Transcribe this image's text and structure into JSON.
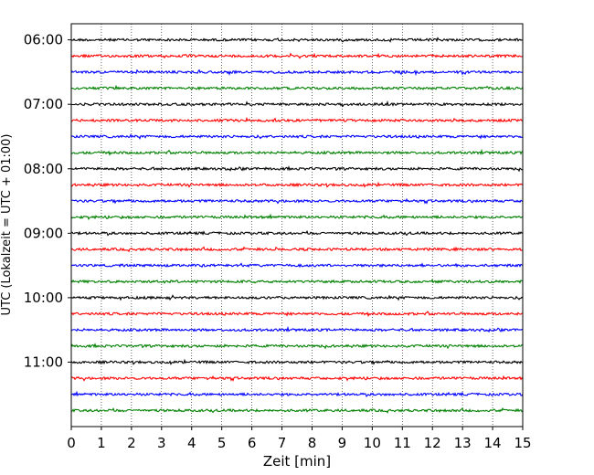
{
  "chart_data": {
    "type": "line",
    "title": "",
    "xlabel": "Zeit  [min]",
    "ylabel": "UTC (Lokalzeit = UTC + 01:00)",
    "xlim": [
      0,
      15
    ],
    "x_ticks": [
      "0",
      "1",
      "2",
      "3",
      "4",
      "5",
      "6",
      "7",
      "8",
      "9",
      "10",
      "11",
      "12",
      "13",
      "14",
      "15"
    ],
    "y_ticks": [
      "06:00",
      "07:00",
      "08:00",
      "09:00",
      "10:00",
      "11:00"
    ],
    "y_range": [
      "05:45",
      "12:00"
    ],
    "trace_interval_min": 15,
    "grid": "vertical dotted lines at each minute",
    "legend": "none",
    "color_cycle": [
      "#000000",
      "#ff0000",
      "#0000ff",
      "#008000"
    ],
    "traces": [
      {
        "start": "06:00",
        "color": "#000000"
      },
      {
        "start": "06:15",
        "color": "#ff0000"
      },
      {
        "start": "06:30",
        "color": "#0000ff"
      },
      {
        "start": "06:45",
        "color": "#008000"
      },
      {
        "start": "07:00",
        "color": "#000000"
      },
      {
        "start": "07:15",
        "color": "#ff0000"
      },
      {
        "start": "07:30",
        "color": "#0000ff"
      },
      {
        "start": "07:45",
        "color": "#008000"
      },
      {
        "start": "08:00",
        "color": "#000000"
      },
      {
        "start": "08:15",
        "color": "#ff0000"
      },
      {
        "start": "08:30",
        "color": "#0000ff"
      },
      {
        "start": "08:45",
        "color": "#008000"
      },
      {
        "start": "09:00",
        "color": "#000000"
      },
      {
        "start": "09:15",
        "color": "#ff0000"
      },
      {
        "start": "09:30",
        "color": "#0000ff"
      },
      {
        "start": "09:45",
        "color": "#008000"
      },
      {
        "start": "10:00",
        "color": "#000000"
      },
      {
        "start": "10:15",
        "color": "#ff0000"
      },
      {
        "start": "10:30",
        "color": "#0000ff"
      },
      {
        "start": "10:45",
        "color": "#008000"
      },
      {
        "start": "11:00",
        "color": "#000000"
      },
      {
        "start": "11:15",
        "color": "#ff0000"
      },
      {
        "start": "11:30",
        "color": "#0000ff"
      },
      {
        "start": "11:45",
        "color": "#008000"
      }
    ]
  }
}
